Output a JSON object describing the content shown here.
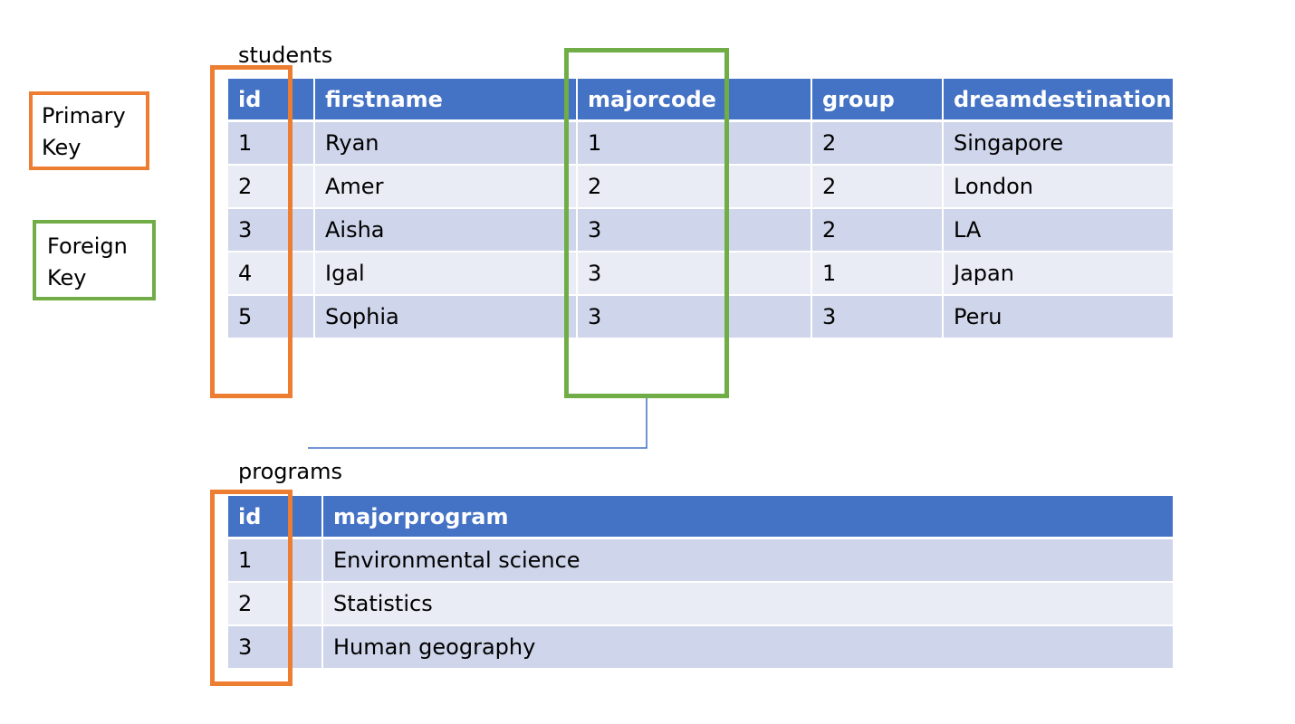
{
  "legend": {
    "primary_key": {
      "line1": "Primary",
      "line2": "Key",
      "color": "#ED7D31"
    },
    "foreign_key": {
      "line1": "Foreign",
      "line2": "Key",
      "color": "#70AD47"
    }
  },
  "students": {
    "title": "students",
    "columns": [
      "id",
      "firstname",
      "majorcode",
      "group",
      "dreamdestination"
    ],
    "rows": [
      [
        "1",
        "Ryan",
        "1",
        "2",
        "Singapore"
      ],
      [
        "2",
        "Amer",
        "2",
        "2",
        "London"
      ],
      [
        "3",
        "Aisha",
        "3",
        "2",
        "LA"
      ],
      [
        "4",
        "Igal",
        "3",
        "1",
        "Japan"
      ],
      [
        "5",
        "Sophia",
        "3",
        "3",
        "Peru"
      ]
    ]
  },
  "programs": {
    "title": "programs",
    "columns": [
      "id",
      "majorprogram"
    ],
    "rows": [
      [
        "1",
        "Environmental science"
      ],
      [
        "2",
        "Statistics"
      ],
      [
        "3",
        "Human geography"
      ]
    ]
  },
  "colors": {
    "header": "#4472C4",
    "row_dark": "#CFD5EA",
    "row_light": "#E9EBF5",
    "connector": "#4472C4"
  }
}
